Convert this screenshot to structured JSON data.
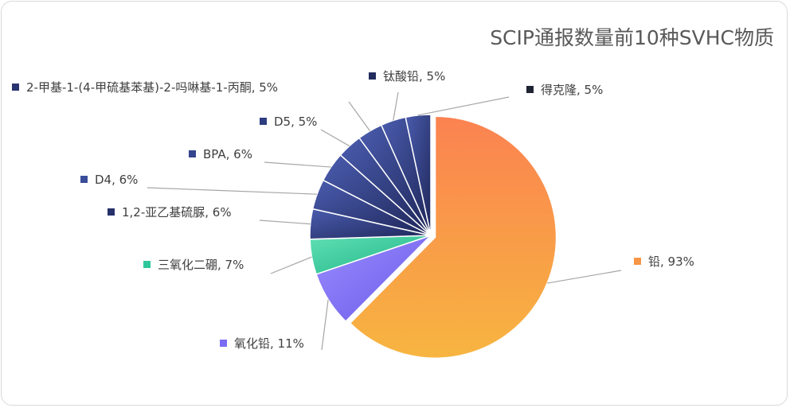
{
  "chart_data": {
    "type": "pie",
    "title": "SCIP通报数量前10种SVHC物质",
    "slices": [
      {
        "name": "铅",
        "value": 93,
        "text": "铅, 93%",
        "color": "#f79646",
        "exploded": true
      },
      {
        "name": "氧化铅",
        "value": 11,
        "text": "氧化铅, 11%",
        "color": "#7b6cf5"
      },
      {
        "name": "三氧化二硼",
        "value": 7,
        "text": "三氧化二硼, 7%",
        "color": "#2ec79b"
      },
      {
        "name": "1,2-亚乙基硫脲",
        "value": 6,
        "text": "1,2-亚乙基硫脲, 6%",
        "color": "#26306a"
      },
      {
        "name": "D4",
        "value": 6,
        "text": "D4, 6%",
        "color": "#3a4d9a"
      },
      {
        "name": "BPA",
        "value": 6,
        "text": "BPA, 6%",
        "color": "#34458e"
      },
      {
        "name": "D5",
        "value": 5,
        "text": "D5, 5%",
        "color": "#2e3c80"
      },
      {
        "name": "2-甲基-1-(4-甲硫基苯基)-2-吗啉基-1-丙酮",
        "value": 5,
        "text": "2-甲基-1-(4-甲硫基苯基)-2-吗啉基-1-丙酮, 5%",
        "color": "#283470"
      },
      {
        "name": "钛酸铅",
        "value": 5,
        "text": "钛酸铅, 5%",
        "color": "#232c5e"
      },
      {
        "name": "得克隆",
        "value": 5,
        "text": "得克隆, 5%",
        "color": "#1f2433"
      }
    ]
  }
}
